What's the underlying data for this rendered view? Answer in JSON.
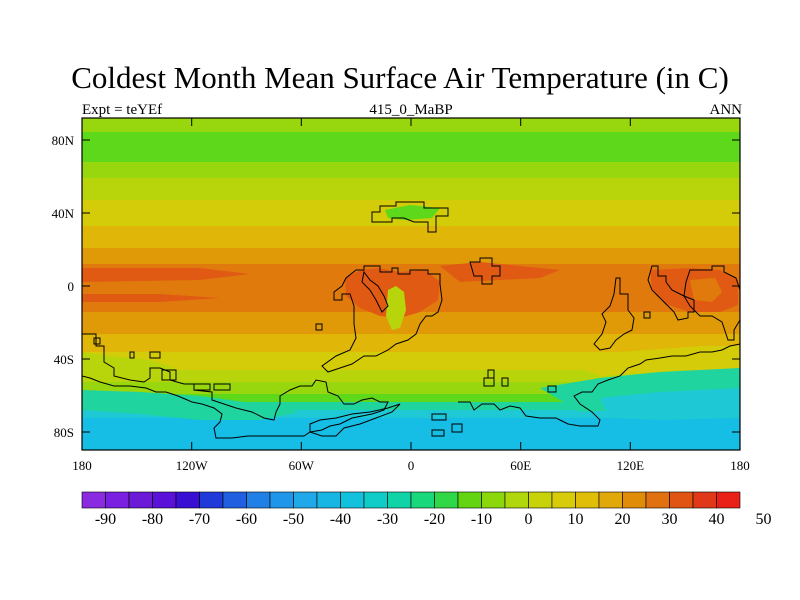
{
  "title": "Coldest Month Mean Surface Air Temperature (in C)",
  "subtitle": {
    "left": "Expt = teYEf",
    "center": "415_0_MaBP",
    "right": "ANN"
  },
  "axes": {
    "lon_ticks": [
      "180",
      "120W",
      "60W",
      "0",
      "60E",
      "120E",
      "180"
    ],
    "lat_ticks": [
      "80N",
      "40N",
      "0",
      "40S",
      "80S"
    ]
  },
  "colorbar": {
    "labels": [
      "-90",
      "-80",
      "-70",
      "-60",
      "-50",
      "-40",
      "-30",
      "-20",
      "-10",
      "0",
      "10",
      "20",
      "30",
      "40",
      "50"
    ],
    "colors": [
      "#8a2be2",
      "#7a1ee0",
      "#6b1ad8",
      "#5a12d8",
      "#3a0fd4",
      "#1f3ad8",
      "#2060e0",
      "#2080e6",
      "#2096ea",
      "#20a8e8",
      "#18b6e2",
      "#12c2dc",
      "#10ccc8",
      "#10d4a8",
      "#18d87c",
      "#30d848",
      "#62d412",
      "#8cd60c",
      "#b0d60c",
      "#c8d208",
      "#d8cc08",
      "#e0be08",
      "#e0a808",
      "#e08c08",
      "#e07010",
      "#e05414",
      "#e03818",
      "#e82018"
    ]
  },
  "map_colors": {
    "frozen": "#16bde4",
    "polar": "#1ec8d4",
    "cold": "#20d4a0",
    "cool": "#5ed81a",
    "temperate": "#98d60e",
    "mild": "#b8d40a",
    "warm": "#d4cc08",
    "hot": "#e0b608",
    "tropical": "#e09a08",
    "very_hot": "#e07a0c",
    "extreme": "#e05a14"
  }
}
